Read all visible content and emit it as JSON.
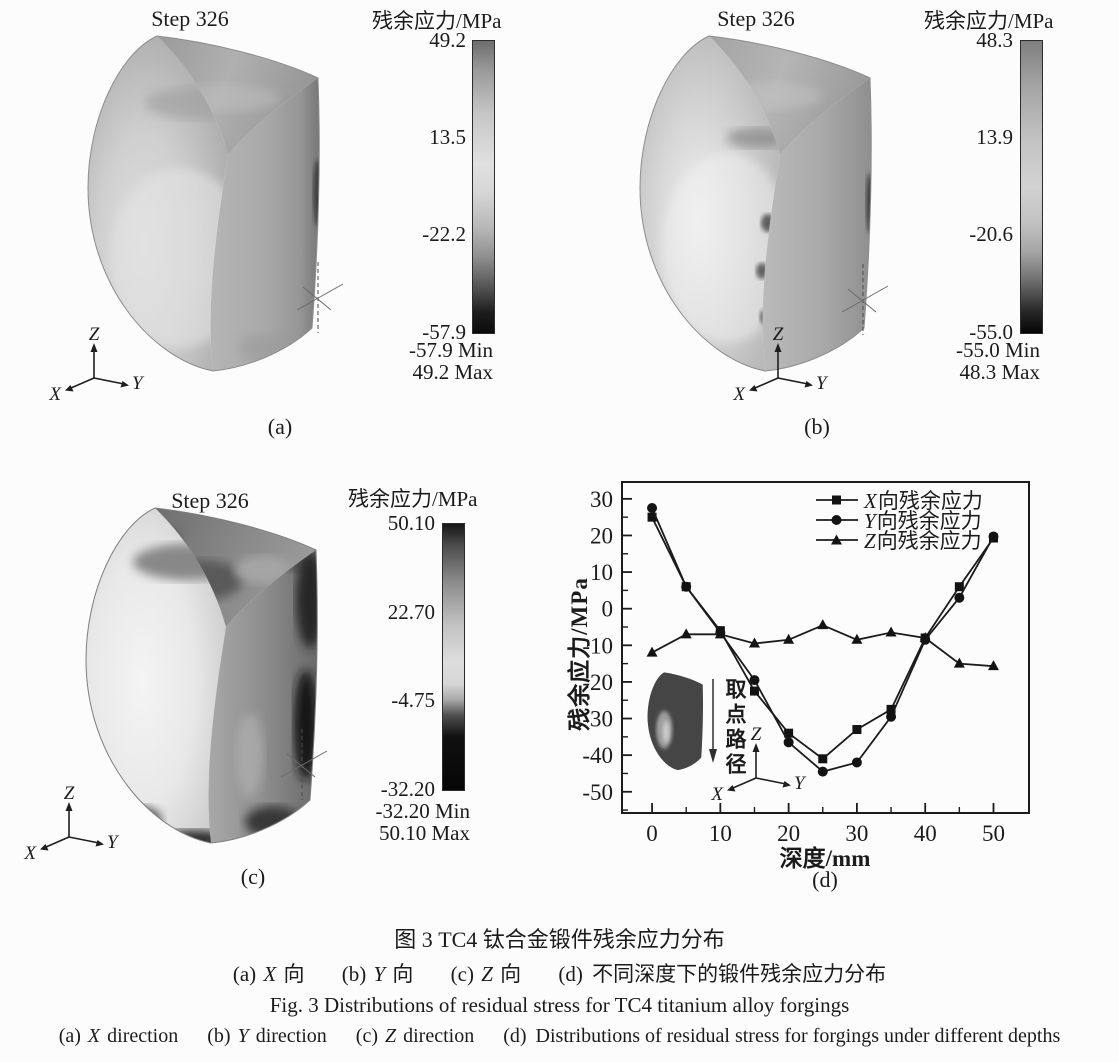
{
  "panels": {
    "a": {
      "step": "Step 326",
      "label": "(a)",
      "triad": {
        "up": "Z",
        "right": "Y",
        "left": "X"
      }
    },
    "b": {
      "step": "Step 326",
      "label": "(b)",
      "triad": {
        "up": "Z",
        "right": "Y",
        "left": "X"
      }
    },
    "c": {
      "step": "Step 326",
      "label": "(c)",
      "triad": {
        "up": "Z",
        "right": "Y",
        "left": "X"
      }
    },
    "d": {
      "label": "(d)"
    }
  },
  "colorbars": {
    "a": {
      "title": "残余应力/MPa",
      "ticks": [
        "49.2",
        "13.5",
        "-22.2",
        "-57.9"
      ],
      "min": "-57.9 Min",
      "max": "49.2 Max"
    },
    "b": {
      "title": "残余应力/MPa",
      "ticks": [
        "48.3",
        "13.9",
        "-20.6",
        "-55.0"
      ],
      "min": "-55.0 Min",
      "max": "48.3 Max"
    },
    "c": {
      "title": "残余应力/MPa",
      "ticks": [
        "50.10",
        "22.70",
        "-4.75",
        "-32.20"
      ],
      "min": "-32.20 Min",
      "max": "50.10 Max"
    }
  },
  "chart_data": {
    "type": "line",
    "title": "",
    "xlabel": "深度/mm",
    "ylabel": "残余应力/MPa",
    "x": [
      0,
      5,
      10,
      15,
      20,
      25,
      30,
      35,
      40,
      45,
      50
    ],
    "series": [
      {
        "var": "X",
        "rest": "向残余应力",
        "marker": "square",
        "values": [
          25,
          6,
          -6,
          -22.5,
          -34,
          -41,
          -33,
          -27.5,
          -8,
          6,
          19.3
        ]
      },
      {
        "var": "Y",
        "rest": "向残余应力",
        "marker": "circle",
        "values": [
          27.5,
          6,
          -6.5,
          -19.5,
          -36.5,
          -44.5,
          -42,
          -29.5,
          -8.5,
          3,
          19.7
        ]
      },
      {
        "var": "Z",
        "rest": "向残余应力",
        "marker": "triangle",
        "values": [
          -12,
          -7,
          -7,
          -9.5,
          -8.5,
          -4.5,
          -8.5,
          -6.5,
          -8,
          -15,
          -15.7
        ]
      }
    ],
    "xticks": [
      0,
      10,
      20,
      30,
      40,
      50
    ],
    "yticks": [
      30,
      20,
      10,
      0,
      -10,
      -20,
      -30,
      -40,
      -50
    ],
    "xlim": [
      -4.4,
      55.2
    ],
    "ylim": [
      -55.8,
      34.6
    ],
    "grid": false,
    "legend_position": "top-right",
    "inset": {
      "label": "取点路径",
      "triad": {
        "up": "Z",
        "right": "Y",
        "left": "X"
      }
    }
  },
  "captions": {
    "zh_title": "图 3  TC4 钛合金锻件残余应力分布",
    "zh_sub": [
      {
        "pre": "(a) ",
        "var": "X",
        "post": " 向"
      },
      {
        "pre": "(b) ",
        "var": "Y",
        "post": " 向"
      },
      {
        "pre": "(c) ",
        "var": "Z",
        "post": " 向"
      },
      {
        "pre": "(d) ",
        "var": "",
        "post": "不同深度下的锻件残余应力分布"
      }
    ],
    "en_title": "Fig. 3  Distributions of residual stress for TC4 titanium alloy forgings",
    "en_sub": [
      {
        "pre": "(a) ",
        "var": "X",
        "post": " direction"
      },
      {
        "pre": "(b) ",
        "var": "Y",
        "post": " direction"
      },
      {
        "pre": "(c) ",
        "var": "Z",
        "post": " direction"
      },
      {
        "pre": "(d) ",
        "var": "",
        "post": "Distributions of residual stress for forgings under different depths"
      }
    ]
  },
  "colors": {
    "ink": "#1b1b1b",
    "paper": "#fcfcfc"
  }
}
